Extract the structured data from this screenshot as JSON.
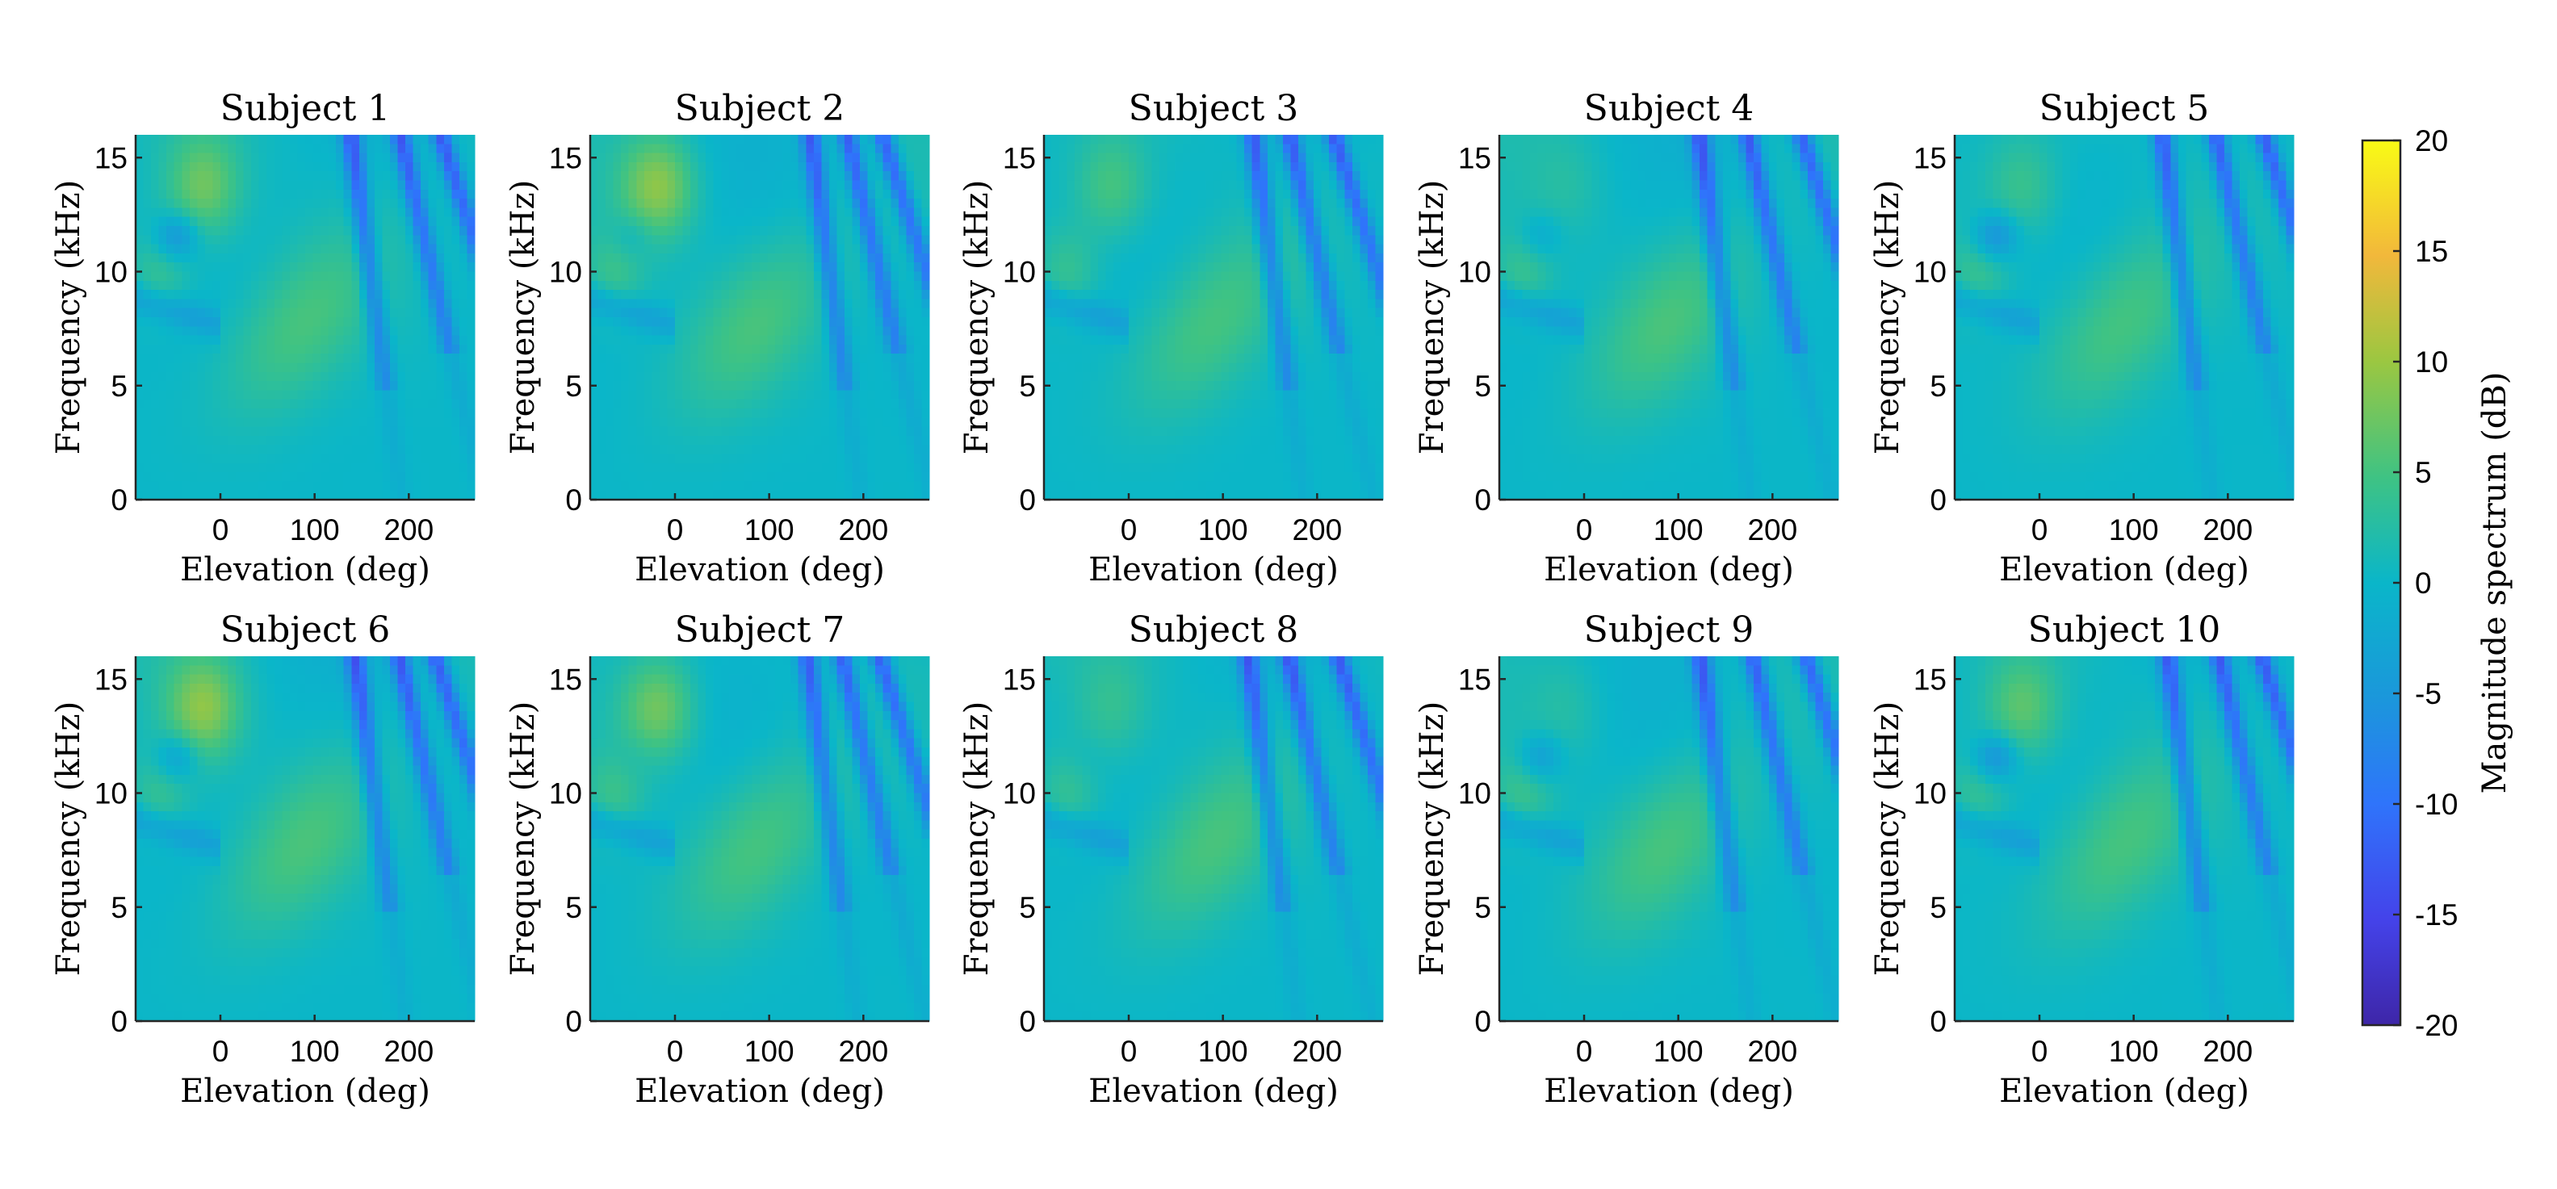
{
  "chart_data": {
    "type": "heatmap",
    "layout": "2 rows x 5 columns of subplots with shared colorbar on the right",
    "subplots": [
      {
        "title": "Subject 1"
      },
      {
        "title": "Subject 2"
      },
      {
        "title": "Subject 3"
      },
      {
        "title": "Subject 4"
      },
      {
        "title": "Subject 5"
      },
      {
        "title": "Subject 6"
      },
      {
        "title": "Subject 7"
      },
      {
        "title": "Subject 8"
      },
      {
        "title": "Subject 9"
      },
      {
        "title": "Subject 10"
      }
    ],
    "xlabel": "Elevation (deg)",
    "ylabel": "Frequency (kHz)",
    "xlim": [
      -90,
      270
    ],
    "ylim": [
      0,
      16
    ],
    "xticks": [
      0,
      100,
      200
    ],
    "yticks": [
      0,
      5,
      10,
      15
    ],
    "colorbar": {
      "label": "Magnitude spectrum (dB)",
      "min": -20,
      "max": 20,
      "ticks": [
        -20,
        -15,
        -10,
        -5,
        0,
        5,
        10,
        15,
        20
      ],
      "colormap": "parula"
    }
  }
}
